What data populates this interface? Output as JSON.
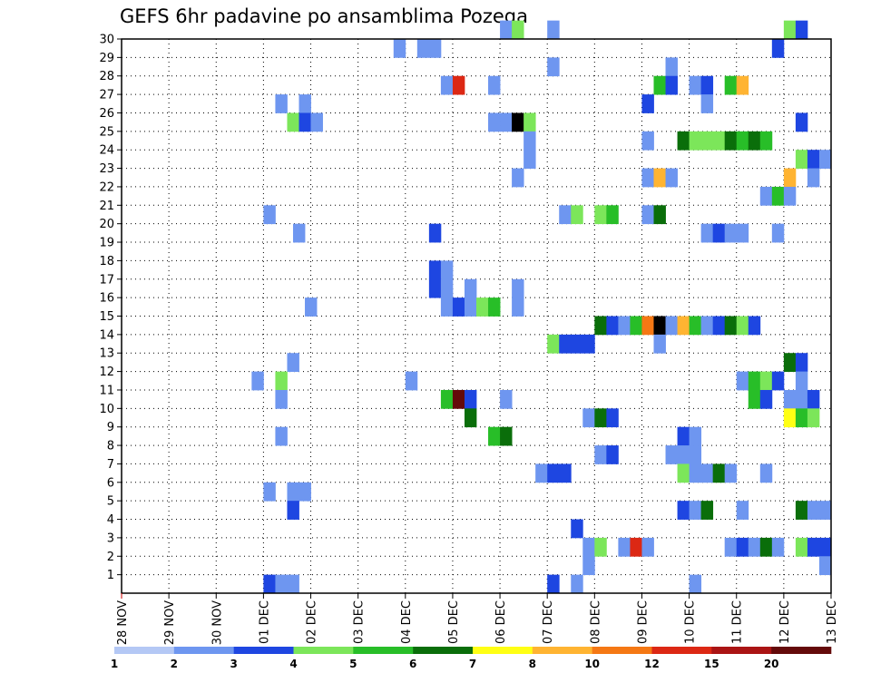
{
  "chart_data": {
    "type": "heatmap",
    "title": "GEFS 6hr padavine po ansamblima Pozega",
    "xlabel": "",
    "ylabel": "",
    "x_tick_labels": [
      "28 NOV",
      "29 NOV",
      "30 NOV",
      "01 DEC",
      "02 DEC",
      "03 DEC",
      "04 DEC",
      "05 DEC",
      "06 DEC",
      "07 DEC",
      "08 DEC",
      "09 DEC",
      "10 DEC",
      "11 DEC",
      "12 DEC",
      "13 DEC"
    ],
    "y_tick_labels": [
      "1",
      "2",
      "3",
      "4",
      "5",
      "6",
      "7",
      "8",
      "9",
      "10",
      "11",
      "12",
      "13",
      "14",
      "15",
      "16",
      "17",
      "18",
      "19",
      "20",
      "21",
      "22",
      "23",
      "24",
      "25",
      "26",
      "27",
      "28",
      "29",
      "30"
    ],
    "x_range": [
      "28 NOV 00Z",
      "13 DEC 00Z"
    ],
    "y_range": [
      0,
      30
    ],
    "time_step_hours": 6,
    "grid": true,
    "legend_position": "bottom",
    "colorbar": {
      "labels": [
        "1",
        "2",
        "3",
        "4",
        "5",
        "6",
        "7",
        "8",
        "10",
        "12",
        "15",
        "20"
      ],
      "colors": [
        "#b4c8f5",
        "#6e96f0",
        "#1e46e1",
        "#7ce65a",
        "#28be28",
        "#0a6e0a",
        "#ffff14",
        "#ffb432",
        "#f57814",
        "#dc2814",
        "#aa1414",
        "#640a0a"
      ]
    },
    "series": [
      {
        "member": 30,
        "cells": [
          [
            8.0,
            1
          ],
          [
            8.25,
            3
          ],
          [
            9.0,
            1
          ],
          [
            14.0,
            3
          ],
          [
            14.25,
            2
          ]
        ]
      },
      {
        "member": 29,
        "cells": [
          [
            5.75,
            1
          ],
          [
            6.25,
            1
          ],
          [
            6.5,
            1
          ],
          [
            13.75,
            2
          ]
        ]
      },
      {
        "member": 28,
        "cells": [
          [
            9.0,
            1
          ],
          [
            11.5,
            1
          ]
        ]
      },
      {
        "member": 27,
        "cells": [
          [
            6.75,
            1
          ],
          [
            7.0,
            9
          ],
          [
            7.75,
            1
          ],
          [
            11.25,
            4
          ],
          [
            11.5,
            2
          ],
          [
            12.0,
            1
          ],
          [
            12.25,
            2
          ],
          [
            12.75,
            4
          ],
          [
            13.0,
            7
          ]
        ]
      },
      {
        "member": 26,
        "cells": [
          [
            3.25,
            1
          ],
          [
            3.75,
            1
          ],
          [
            11.0,
            2
          ],
          [
            12.25,
            1
          ]
        ]
      },
      {
        "member": 25,
        "cells": [
          [
            3.5,
            3
          ],
          [
            3.75,
            2
          ],
          [
            4.0,
            1
          ],
          [
            7.75,
            1
          ],
          [
            8.0,
            1
          ],
          [
            8.25,
            12
          ],
          [
            8.5,
            3
          ],
          [
            14.25,
            2
          ]
        ]
      },
      {
        "member": 24,
        "cells": [
          [
            8.5,
            1
          ],
          [
            11.0,
            1
          ],
          [
            11.75,
            5
          ],
          [
            12.0,
            3
          ],
          [
            12.25,
            3
          ],
          [
            12.5,
            3
          ],
          [
            12.75,
            5
          ],
          [
            13.0,
            4
          ],
          [
            13.25,
            5
          ],
          [
            13.5,
            4
          ]
        ]
      },
      {
        "member": 23,
        "cells": [
          [
            8.5,
            1
          ],
          [
            14.25,
            3
          ],
          [
            14.5,
            2
          ],
          [
            14.75,
            1
          ]
        ]
      },
      {
        "member": 22,
        "cells": [
          [
            8.25,
            1
          ],
          [
            11.0,
            1
          ],
          [
            11.25,
            7
          ],
          [
            11.5,
            1
          ],
          [
            14.0,
            7
          ],
          [
            14.5,
            1
          ]
        ]
      },
      {
        "member": 21,
        "cells": [
          [
            13.5,
            1
          ],
          [
            13.75,
            4
          ],
          [
            14.0,
            1
          ]
        ]
      },
      {
        "member": 20,
        "cells": [
          [
            3.0,
            1
          ],
          [
            9.25,
            1
          ],
          [
            9.5,
            3
          ],
          [
            10.0,
            3
          ],
          [
            10.25,
            4
          ],
          [
            11.0,
            1
          ],
          [
            11.25,
            5
          ]
        ]
      },
      {
        "member": 19,
        "cells": [
          [
            3.625,
            1
          ],
          [
            6.5,
            2
          ],
          [
            12.25,
            1
          ],
          [
            12.5,
            2
          ],
          [
            12.75,
            1
          ],
          [
            13.0,
            1
          ],
          [
            13.75,
            1
          ]
        ]
      },
      {
        "member": 17,
        "cells": [
          [
            6.5,
            2
          ],
          [
            6.75,
            1
          ]
        ]
      },
      {
        "member": 16,
        "cells": [
          [
            6.5,
            2
          ],
          [
            6.75,
            1
          ],
          [
            7.25,
            1
          ],
          [
            8.25,
            1
          ]
        ]
      },
      {
        "member": 15,
        "cells": [
          [
            3.875,
            1
          ],
          [
            6.75,
            1
          ],
          [
            7.0,
            2
          ],
          [
            7.25,
            1
          ],
          [
            7.5,
            3
          ],
          [
            7.75,
            4
          ],
          [
            8.25,
            1
          ]
        ]
      },
      {
        "member": 14,
        "cells": [
          [
            10.0,
            5
          ],
          [
            10.25,
            2
          ],
          [
            10.5,
            1
          ],
          [
            10.75,
            4
          ],
          [
            11.0,
            8
          ],
          [
            11.25,
            12
          ],
          [
            11.5,
            1
          ],
          [
            11.75,
            7
          ],
          [
            12.0,
            4
          ],
          [
            12.25,
            1
          ],
          [
            12.5,
            2
          ],
          [
            12.75,
            5
          ],
          [
            13.0,
            3
          ],
          [
            13.25,
            2
          ]
        ]
      },
      {
        "member": 13,
        "cells": [
          [
            9.0,
            3
          ],
          [
            9.25,
            2
          ],
          [
            9.5,
            2
          ],
          [
            9.75,
            2
          ],
          [
            11.25,
            1
          ]
        ]
      },
      {
        "member": 12,
        "cells": [
          [
            3.5,
            1
          ],
          [
            14.0,
            5
          ],
          [
            14.25,
            2
          ]
        ]
      },
      {
        "member": 11,
        "cells": [
          [
            2.75,
            1
          ],
          [
            3.25,
            3
          ],
          [
            6.0,
            1
          ],
          [
            13.0,
            1
          ],
          [
            13.25,
            4
          ],
          [
            13.5,
            3
          ],
          [
            13.75,
            2
          ],
          [
            14.25,
            1
          ]
        ]
      },
      {
        "member": 10,
        "cells": [
          [
            3.25,
            1
          ],
          [
            6.75,
            4
          ],
          [
            7.0,
            11
          ],
          [
            7.25,
            2
          ],
          [
            8.0,
            1
          ],
          [
            13.25,
            4
          ],
          [
            13.5,
            2
          ],
          [
            14.0,
            1
          ],
          [
            14.25,
            1
          ],
          [
            14.5,
            2
          ]
        ]
      },
      {
        "member": 9,
        "cells": [
          [
            7.25,
            5
          ],
          [
            9.75,
            1
          ],
          [
            10.0,
            5
          ],
          [
            10.25,
            2
          ],
          [
            14.0,
            6
          ],
          [
            14.25,
            4
          ],
          [
            14.5,
            3
          ]
        ]
      },
      {
        "member": 8,
        "cells": [
          [
            3.25,
            1
          ],
          [
            7.75,
            4
          ],
          [
            8.0,
            5
          ],
          [
            11.75,
            2
          ],
          [
            12.0,
            1
          ]
        ]
      },
      {
        "member": 7,
        "cells": [
          [
            10.0,
            1
          ],
          [
            10.25,
            2
          ],
          [
            11.5,
            1
          ],
          [
            11.75,
            1
          ],
          [
            12.0,
            1
          ]
        ]
      },
      {
        "member": 6,
        "cells": [
          [
            8.75,
            1
          ],
          [
            9.0,
            2
          ],
          [
            9.25,
            2
          ],
          [
            11.75,
            3
          ],
          [
            12.0,
            1
          ],
          [
            12.25,
            1
          ],
          [
            12.5,
            5
          ],
          [
            12.75,
            1
          ],
          [
            13.5,
            1
          ]
        ]
      },
      {
        "member": 5,
        "cells": [
          [
            3.0,
            1
          ],
          [
            3.5,
            1
          ],
          [
            3.75,
            1
          ]
        ]
      },
      {
        "member": 4,
        "cells": [
          [
            3.5,
            2
          ],
          [
            11.75,
            2
          ],
          [
            12.0,
            1
          ],
          [
            12.25,
            5
          ],
          [
            13.0,
            1
          ],
          [
            14.25,
            5
          ],
          [
            14.5,
            1
          ],
          [
            14.75,
            1
          ]
        ]
      },
      {
        "member": 3,
        "cells": [
          [
            9.5,
            2
          ]
        ]
      },
      {
        "member": 2,
        "cells": [
          [
            9.75,
            1
          ],
          [
            10.0,
            3
          ],
          [
            10.5,
            1
          ],
          [
            10.75,
            9
          ],
          [
            11.0,
            1
          ],
          [
            12.75,
            1
          ],
          [
            13.0,
            2
          ],
          [
            13.25,
            1
          ],
          [
            13.5,
            5
          ],
          [
            13.75,
            1
          ],
          [
            14.25,
            3
          ],
          [
            14.5,
            2
          ],
          [
            14.75,
            2
          ]
        ]
      },
      {
        "member": 1,
        "cells": [
          [
            9.75,
            1
          ],
          [
            14.75,
            1
          ]
        ]
      },
      {
        "member": 0,
        "cells": [
          [
            3.0,
            2
          ],
          [
            3.25,
            1
          ],
          [
            3.5,
            1
          ],
          [
            9.0,
            2
          ],
          [
            9.5,
            1
          ],
          [
            12.0,
            1
          ]
        ]
      }
    ]
  }
}
